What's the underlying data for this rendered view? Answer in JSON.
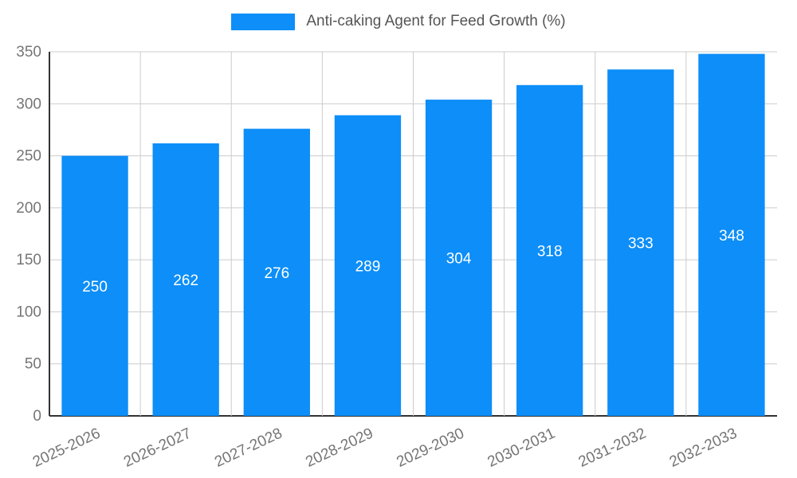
{
  "chart_data": {
    "type": "bar",
    "title": "Anti-caking Agent for Feed Growth (%)",
    "categories": [
      "2025-2026",
      "2026-2027",
      "2027-2028",
      "2028-2029",
      "2029-2030",
      "2030-2031",
      "2031-2032",
      "2032-2033"
    ],
    "values": [
      250,
      262,
      276,
      289,
      304,
      318,
      333,
      348
    ],
    "xlabel": "",
    "ylabel": "",
    "ylim": [
      0,
      350
    ],
    "yticks": [
      0,
      50,
      100,
      150,
      200,
      250,
      300,
      350
    ],
    "grid": true,
    "legend_position": "top-center",
    "bar_color": "#0d8ef8",
    "value_label_color": "#ffffff",
    "tick_label_color": "#757575",
    "grid_color": "#cccccc",
    "axis_color": "#333333",
    "x_tick_rotation_deg": -25
  }
}
